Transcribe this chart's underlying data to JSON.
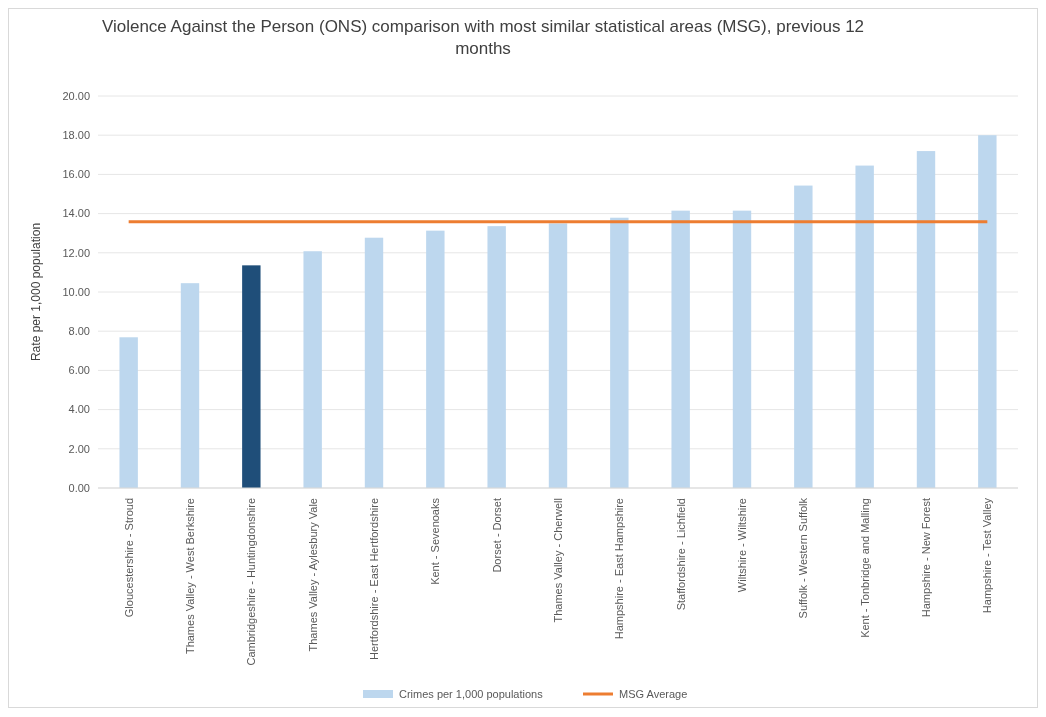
{
  "chart_data": {
    "type": "bar",
    "title": "Violence Against the Person (ONS) comparison with most similar statistical areas (MSG), previous 12 months",
    "ylabel": "Rate per 1,000 population",
    "categories": [
      "Gloucestershire - Stroud",
      "Thames Valley - West Berkshire",
      "Cambridgeshire - Huntingdonshire",
      "Thames Valley - Aylesbury Vale",
      "Hertfordshire - East Hertfordshire",
      "Kent - Sevenoaks",
      "Dorset - Dorset",
      "Thames Valley - Cherwell",
      "Hampshire - East Hampshire",
      "Staffordshire - Lichfield",
      "Wiltshire - Wiltshire",
      "Suffolk - Western Suffolk",
      "Kent - Tonbridge and Malling",
      "Hampshire - New Forest",
      "Hampshire - Test Valley"
    ],
    "series": [
      {
        "name": "Crimes per 1,000 populations",
        "color": "#bdd7ee",
        "colors": [
          "#bdd7ee",
          "#bdd7ee",
          "#1f4e79",
          "#bdd7ee",
          "#bdd7ee",
          "#bdd7ee",
          "#bdd7ee",
          "#bdd7ee",
          "#bdd7ee",
          "#bdd7ee",
          "#bdd7ee",
          "#bdd7ee",
          "#bdd7ee",
          "#bdd7ee",
          "#bdd7ee"
        ],
        "values": [
          7.69,
          10.45,
          11.36,
          12.08,
          12.77,
          13.13,
          13.36,
          13.5,
          13.79,
          14.15,
          14.15,
          15.43,
          16.45,
          17.19,
          18.0
        ]
      },
      {
        "name": "MSG Average",
        "type": "line",
        "color": "#ed7d31",
        "values": [
          13.59,
          13.59,
          13.59,
          13.59,
          13.59,
          13.59,
          13.59,
          13.59,
          13.59,
          13.59,
          13.59,
          13.59,
          13.59,
          13.59,
          13.59
        ]
      }
    ],
    "ylim": [
      0,
      20
    ],
    "yticks": [
      {
        "value": 0,
        "label": "0.00"
      },
      {
        "value": 2,
        "label": "2.00"
      },
      {
        "value": 4,
        "label": "4.00"
      },
      {
        "value": 6,
        "label": "6.00"
      },
      {
        "value": 8,
        "label": "8.00"
      },
      {
        "value": 10,
        "label": "10.00"
      },
      {
        "value": 12,
        "label": "12.00"
      },
      {
        "value": 14,
        "label": "14.00"
      },
      {
        "value": 16,
        "label": "16.00"
      },
      {
        "value": 18,
        "label": "18.00"
      },
      {
        "value": 20,
        "label": "20.00"
      }
    ],
    "grid": "y",
    "legend": "bottom",
    "marker": "none",
    "line_style": "solid"
  }
}
